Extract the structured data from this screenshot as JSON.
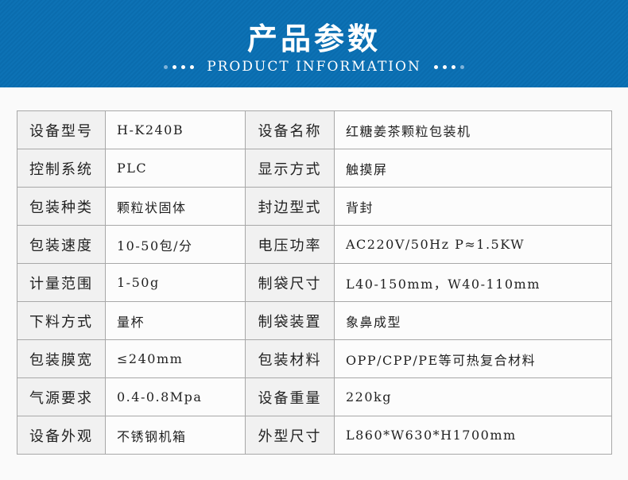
{
  "header": {
    "title": "产品参数",
    "subtitle": "PRODUCT INFORMATION",
    "color": "#0a6fb2"
  },
  "rows": [
    {
      "k1": "设备型号",
      "v1": "H-K240B",
      "k2": "设备名称",
      "v2": "红糖姜茶颗粒包装机"
    },
    {
      "k1": "控制系统",
      "v1": "PLC",
      "k2": "显示方式",
      "v2": "触摸屏"
    },
    {
      "k1": "包装种类",
      "v1": "颗粒状固体",
      "k2": "封边型式",
      "v2": "背封"
    },
    {
      "k1": "包装速度",
      "v1": "10-50包/分",
      "k2": "电压功率",
      "v2": "AC220V/50Hz  P≈1.5KW"
    },
    {
      "k1": "计量范围",
      "v1": "1-50g",
      "k2": "制袋尺寸",
      "v2": "L40-150mm，W40-110mm"
    },
    {
      "k1": "下料方式",
      "v1": "量杯",
      "k2": "制袋装置",
      "v2": "象鼻成型"
    },
    {
      "k1": "包装膜宽",
      "v1": "≤240mm",
      "k2": "包装材料",
      "v2": "OPP/CPP/PE等可热复合材料"
    },
    {
      "k1": "气源要求",
      "v1": "0.4-0.8Mpa",
      "k2": "设备重量",
      "v2": "220kg"
    },
    {
      "k1": "设备外观",
      "v1": "不锈钢机箱",
      "k2": "外型尺寸",
      "v2": "L860*W630*H1700mm"
    }
  ]
}
